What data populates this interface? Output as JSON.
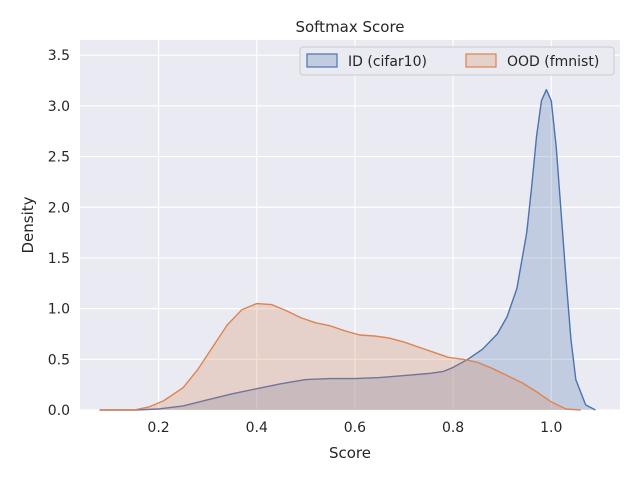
{
  "chart_data": {
    "type": "area",
    "title": "Softmax Score",
    "xlabel": "Score",
    "ylabel": "Density",
    "xlim": [
      0.04,
      1.14
    ],
    "ylim": [
      0,
      3.65
    ],
    "xticks": [
      0.2,
      0.4,
      0.6,
      0.8,
      1.0
    ],
    "xtick_labels": [
      "0.2",
      "0.4",
      "0.6",
      "0.8",
      "1.0"
    ],
    "yticks": [
      0.0,
      0.5,
      1.0,
      1.5,
      2.0,
      2.5,
      3.0,
      3.5
    ],
    "ytick_labels": [
      "0.0",
      "0.5",
      "1.0",
      "1.5",
      "2.0",
      "2.5",
      "3.0",
      "3.5"
    ],
    "grid": true,
    "legend_position": "top-right",
    "series": [
      {
        "name": "ID (cifar10)",
        "color": "#4c72b0",
        "x": [
          0.08,
          0.15,
          0.2,
          0.25,
          0.3,
          0.35,
          0.4,
          0.45,
          0.5,
          0.55,
          0.6,
          0.65,
          0.7,
          0.75,
          0.78,
          0.8,
          0.83,
          0.86,
          0.89,
          0.91,
          0.93,
          0.95,
          0.96,
          0.97,
          0.98,
          0.99,
          1.0,
          1.01,
          1.02,
          1.03,
          1.04,
          1.05,
          1.07,
          1.09
        ],
        "y": [
          0.0,
          0.0,
          0.01,
          0.04,
          0.1,
          0.16,
          0.21,
          0.26,
          0.3,
          0.31,
          0.31,
          0.32,
          0.34,
          0.36,
          0.38,
          0.42,
          0.5,
          0.6,
          0.75,
          0.92,
          1.2,
          1.75,
          2.2,
          2.7,
          3.05,
          3.16,
          3.05,
          2.6,
          1.95,
          1.3,
          0.7,
          0.3,
          0.05,
          0.0
        ]
      },
      {
        "name": "OOD (fmnist)",
        "color": "#dd8452",
        "x": [
          0.08,
          0.15,
          0.18,
          0.21,
          0.25,
          0.28,
          0.31,
          0.34,
          0.37,
          0.4,
          0.43,
          0.46,
          0.49,
          0.52,
          0.55,
          0.58,
          0.61,
          0.64,
          0.67,
          0.7,
          0.73,
          0.76,
          0.79,
          0.82,
          0.85,
          0.88,
          0.91,
          0.94,
          0.97,
          1.0,
          1.03,
          1.06
        ],
        "y": [
          0.0,
          0.0,
          0.03,
          0.09,
          0.22,
          0.4,
          0.62,
          0.84,
          0.99,
          1.05,
          1.04,
          0.98,
          0.91,
          0.86,
          0.83,
          0.78,
          0.74,
          0.73,
          0.71,
          0.67,
          0.62,
          0.57,
          0.52,
          0.5,
          0.47,
          0.41,
          0.34,
          0.27,
          0.18,
          0.08,
          0.01,
          0.0
        ]
      }
    ]
  }
}
